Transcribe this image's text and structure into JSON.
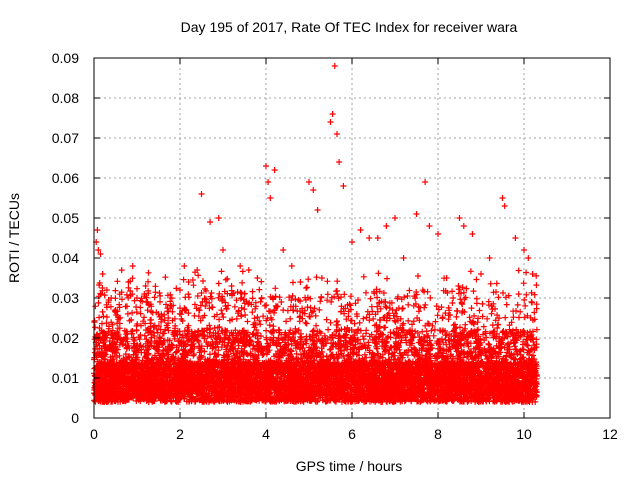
{
  "chart_data": {
    "type": "scatter",
    "title": "Day 195 of 2017, Rate Of TEC Index for receiver wara",
    "xlabel": "GPS time / hours",
    "ylabel": "ROTI / TECUs",
    "xlim": [
      0,
      12
    ],
    "ylim": [
      0,
      0.09
    ],
    "x_ticks": [
      0,
      2,
      4,
      6,
      8,
      10,
      12
    ],
    "x_tick_labels": [
      "0",
      "2",
      "4",
      "6",
      "8",
      "10",
      "12"
    ],
    "y_ticks": [
      0,
      0.01,
      0.02,
      0.03,
      0.04,
      0.05,
      0.06,
      0.07,
      0.08,
      0.09
    ],
    "y_tick_labels": [
      "0",
      "0.01",
      "0.02",
      "0.03",
      "0.04",
      "0.05",
      "0.06",
      "0.07",
      "0.08",
      "0.09"
    ],
    "grid": true,
    "marker": "+",
    "color": "#ff0000",
    "data_x_range": [
      0,
      10.3
    ],
    "series": [
      {
        "name": "ROTI",
        "x": [
          0.05,
          0.08,
          0.1,
          0.15,
          0.2,
          0.3,
          0.4,
          0.5,
          0.6,
          0.8,
          0.9,
          1.0,
          1.2,
          1.5,
          1.8,
          2.0,
          2.1,
          2.2,
          2.4,
          2.5,
          2.7,
          2.9,
          3.0,
          3.2,
          3.4,
          3.6,
          3.8,
          4.0,
          4.05,
          4.1,
          4.2,
          4.4,
          4.6,
          4.8,
          5.0,
          5.1,
          5.2,
          5.3,
          5.5,
          5.55,
          5.6,
          5.65,
          5.7,
          5.8,
          6.0,
          6.2,
          6.4,
          6.6,
          6.8,
          7.0,
          7.2,
          7.5,
          7.7,
          7.8,
          8.0,
          8.2,
          8.5,
          8.6,
          8.8,
          9.0,
          9.2,
          9.5,
          9.55,
          9.8,
          10.0,
          10.1,
          10.2
        ],
        "y": [
          0.044,
          0.047,
          0.042,
          0.041,
          0.036,
          0.032,
          0.03,
          0.027,
          0.025,
          0.034,
          0.038,
          0.03,
          0.033,
          0.026,
          0.028,
          0.032,
          0.038,
          0.034,
          0.037,
          0.056,
          0.049,
          0.05,
          0.042,
          0.033,
          0.038,
          0.037,
          0.035,
          0.063,
          0.059,
          0.055,
          0.062,
          0.042,
          0.038,
          0.034,
          0.059,
          0.057,
          0.052,
          0.035,
          0.074,
          0.076,
          0.088,
          0.071,
          0.064,
          0.058,
          0.044,
          0.047,
          0.045,
          0.045,
          0.048,
          0.05,
          0.04,
          0.051,
          0.059,
          0.048,
          0.046,
          0.035,
          0.05,
          0.048,
          0.046,
          0.036,
          0.04,
          0.055,
          0.053,
          0.045,
          0.042,
          0.04,
          0.036
        ]
      }
    ]
  }
}
